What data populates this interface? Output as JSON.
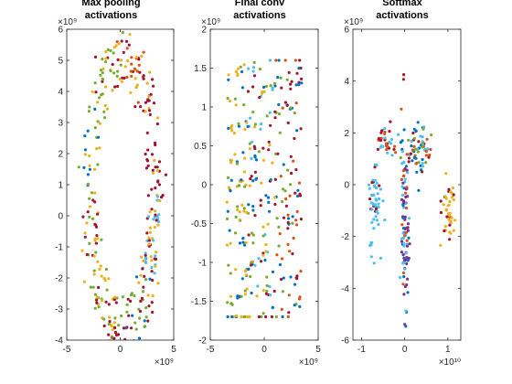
{
  "figure": {
    "background": "#ffffff"
  },
  "chart_data": [
    {
      "type": "scatter",
      "title_lines": [
        "Max  pooling",
        "activations"
      ],
      "x_exponent": "×10⁹",
      "y_exponent": "×10⁹",
      "xlim": [
        -5,
        5
      ],
      "ylim": [
        -4,
        6
      ],
      "xticks": [
        -5,
        0,
        5
      ],
      "yticks": [
        -4,
        -3,
        -2,
        -1,
        0,
        1,
        2,
        3,
        4,
        5,
        6
      ],
      "xtick_labels": [
        "-5",
        "0",
        "5"
      ],
      "ytick_labels": [
        "-4",
        "-3",
        "-2",
        "-1",
        "0",
        "1",
        "2",
        "3",
        "4",
        "5",
        "6"
      ],
      "grid": false,
      "pattern": "ring",
      "ring": {
        "cx": 0.2,
        "cy": 0.7,
        "rx": 3.0,
        "ry": 4.4,
        "thickness": 1.0,
        "n": 360
      }
    },
    {
      "type": "scatter",
      "title_lines": [
        "Final  conv",
        "activations"
      ],
      "x_exponent": "×10⁹",
      "y_exponent": "×10⁹",
      "xlim": [
        -5,
        5
      ],
      "ylim": [
        -2,
        2
      ],
      "xticks": [
        -5,
        0,
        5
      ],
      "yticks": [
        -2,
        -1.5,
        -1,
        -0.5,
        0,
        0.5,
        1,
        1.5,
        2
      ],
      "xtick_labels": [
        "-5",
        "0",
        "5"
      ],
      "ytick_labels": [
        "-2",
        "-1.5",
        "-1",
        "-0.5",
        "0",
        "0.5",
        "1",
        "1.5",
        "2"
      ],
      "grid": false,
      "pattern": "stripes",
      "stripes": {
        "x0": -3.5,
        "x1": 3.5,
        "y0": -1.7,
        "y1": 1.6,
        "n": 330
      }
    },
    {
      "type": "scatter",
      "title_lines": [
        "Softmax",
        "activations"
      ],
      "x_exponent": "×10¹⁰",
      "y_exponent": "×10⁹",
      "xlim": [
        -1.2,
        1.3
      ],
      "ylim": [
        -6,
        6
      ],
      "xticks": [
        -1,
        0,
        1
      ],
      "yticks": [
        -6,
        -4,
        -2,
        0,
        2,
        4,
        6
      ],
      "xtick_labels": [
        "-1",
        "0",
        "1"
      ],
      "ytick_labels": [
        "-6",
        "-4",
        "-2",
        "0",
        "2",
        "4",
        "6"
      ],
      "grid": false,
      "pattern": "clusters",
      "clusters": [
        {
          "x": -0.7,
          "y": -0.8,
          "sx": 0.08,
          "sy": 1.4,
          "n": 55,
          "palette": [
            5,
            5,
            5,
            6
          ]
        },
        {
          "x": -0.4,
          "y": 1.7,
          "sx": 0.15,
          "sy": 0.5,
          "n": 35,
          "palette": [
            5,
            1,
            6
          ]
        },
        {
          "x": 0.0,
          "y": -2.0,
          "sx": 0.04,
          "sy": 2.3,
          "n": 90,
          "palette": [
            3,
            3,
            1,
            0,
            5
          ]
        },
        {
          "x": 0.3,
          "y": 1.3,
          "sx": 0.18,
          "sy": 0.9,
          "n": 70,
          "palette": [
            1,
            5,
            6,
            4,
            0
          ]
        },
        {
          "x": 1.0,
          "y": -1.0,
          "sx": 0.08,
          "sy": 1.3,
          "n": 40,
          "palette": [
            2,
            2,
            6
          ]
        },
        {
          "x": 0.0,
          "y": 4.2,
          "sx": 0.02,
          "sy": 0.2,
          "n": 2,
          "palette": [
            6
          ]
        }
      ]
    }
  ],
  "palette": [
    "#0072BD",
    "#D95319",
    "#EDB120",
    "#7E2F8E",
    "#77AC30",
    "#4DBEEE",
    "#A2142F"
  ]
}
